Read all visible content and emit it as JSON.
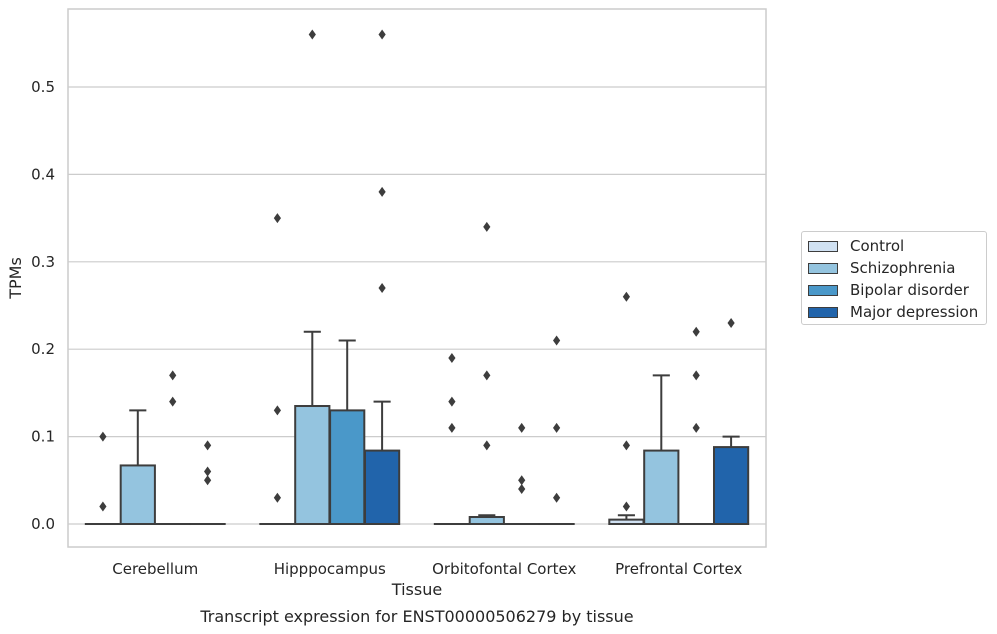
{
  "chart_data": {
    "type": "box",
    "title": "",
    "xlabel": "Tissue",
    "ylabel": "TPMs",
    "caption": "Transcript expression for ENST00000506279 by tissue",
    "categories": [
      "Cerebellum",
      "Hipppocampus",
      "Orbitofontal Cortex",
      "Prefrontal Cortex"
    ],
    "ylim": [
      -0.028,
      0.588
    ],
    "yticks": [
      0.0,
      0.1,
      0.2,
      0.3,
      0.4,
      0.5
    ],
    "ytick_labels": [
      "0.0",
      "0.1",
      "0.2",
      "0.3",
      "0.4",
      "0.5"
    ],
    "grid": "horizontal",
    "legend_position": "right",
    "series": [
      {
        "name": "Control",
        "color": "#d0e1f2",
        "boxes": [
          {
            "q1": 0,
            "median": 0,
            "q3": 0,
            "whisker_low": 0,
            "whisker_high": 0,
            "outliers": [
              0.02,
              0.1
            ]
          },
          {
            "q1": 0,
            "median": 0,
            "q3": 0,
            "whisker_low": 0,
            "whisker_high": 0,
            "outliers": [
              0.03,
              0.13,
              0.35
            ]
          },
          {
            "q1": 0,
            "median": 0,
            "q3": 0,
            "whisker_low": 0,
            "whisker_high": 0,
            "outliers": [
              0.11,
              0.14,
              0.19
            ]
          },
          {
            "q1": 0,
            "median": 0,
            "q3": 0.005,
            "whisker_low": 0,
            "whisker_high": 0.01,
            "outliers": [
              0.02,
              0.09,
              0.26
            ]
          }
        ]
      },
      {
        "name": "Schizophrenia",
        "color": "#94c4df",
        "boxes": [
          {
            "q1": 0,
            "median": 0,
            "q3": 0.067,
            "whisker_low": 0,
            "whisker_high": 0.13,
            "outliers": []
          },
          {
            "q1": 0,
            "median": 0,
            "q3": 0.135,
            "whisker_low": 0,
            "whisker_high": 0.22,
            "outliers": [
              0.56
            ]
          },
          {
            "q1": 0,
            "median": 0,
            "q3": 0.008,
            "whisker_low": 0,
            "whisker_high": 0.01,
            "outliers": [
              0.09,
              0.17,
              0.34
            ]
          },
          {
            "q1": 0,
            "median": 0,
            "q3": 0.084,
            "whisker_low": 0,
            "whisker_high": 0.17,
            "outliers": []
          }
        ]
      },
      {
        "name": "Bipolar disorder",
        "color": "#4a98c9",
        "boxes": [
          {
            "q1": 0,
            "median": 0,
            "q3": 0,
            "whisker_low": 0,
            "whisker_high": 0,
            "outliers": [
              0.14,
              0.17
            ]
          },
          {
            "q1": 0,
            "median": 0,
            "q3": 0.13,
            "whisker_low": 0,
            "whisker_high": 0.21,
            "outliers": []
          },
          {
            "q1": 0,
            "median": 0,
            "q3": 0,
            "whisker_low": 0,
            "whisker_high": 0,
            "outliers": [
              0.04,
              0.05,
              0.11
            ]
          },
          {
            "q1": 0,
            "median": 0,
            "q3": 0,
            "whisker_low": 0,
            "whisker_high": 0,
            "outliers": [
              0.11,
              0.17,
              0.22
            ]
          }
        ]
      },
      {
        "name": "Major depression",
        "color": "#2164ab",
        "boxes": [
          {
            "q1": 0,
            "median": 0,
            "q3": 0,
            "whisker_low": 0,
            "whisker_high": 0,
            "outliers": [
              0.05,
              0.06,
              0.09
            ]
          },
          {
            "q1": 0,
            "median": 0,
            "q3": 0.084,
            "whisker_low": 0,
            "whisker_high": 0.14,
            "outliers": [
              0.27,
              0.38,
              0.56
            ]
          },
          {
            "q1": 0,
            "median": 0,
            "q3": 0,
            "whisker_low": 0,
            "whisker_high": 0,
            "outliers": [
              0.03,
              0.11,
              0.21
            ]
          },
          {
            "q1": 0,
            "median": 0,
            "q3": 0.088,
            "whisker_low": 0,
            "whisker_high": 0.1,
            "outliers": [
              0.23
            ]
          }
        ]
      }
    ]
  }
}
